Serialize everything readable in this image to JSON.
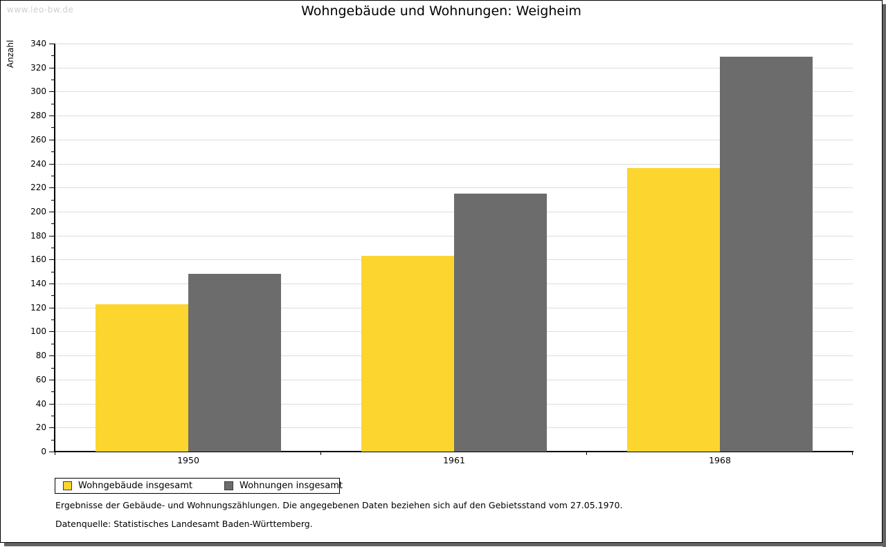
{
  "watermark": "www.leo-bw.de",
  "title": "Wohngebäude und Wohnungen: Weigheim",
  "chart_data": {
    "type": "bar",
    "title": "Wohngebäude und Wohnungen: Weigheim",
    "xlabel": "",
    "ylabel": "Anzahl",
    "categories": [
      "1950",
      "1961",
      "1968"
    ],
    "series": [
      {
        "name": "Wohngebäude insgesamt",
        "color": "#FDD52F",
        "values": [
          123,
          163,
          236
        ]
      },
      {
        "name": "Wohnungen insgesamt",
        "color": "#6C6C6C",
        "values": [
          148,
          215,
          329
        ]
      }
    ],
    "ylim": [
      0,
      340
    ],
    "ytick_step": 20,
    "minor_tick_step": 10,
    "grid": "horizontal",
    "legend_position": "bottom-left"
  },
  "footnotes": [
    "Ergebnisse der Gebäude- und Wohnungszählungen. Die angegebenen Daten beziehen sich auf den Gebietsstand vom 27.05.1970.",
    "Datenquelle: Statistisches Landesamt Baden-Württemberg."
  ]
}
